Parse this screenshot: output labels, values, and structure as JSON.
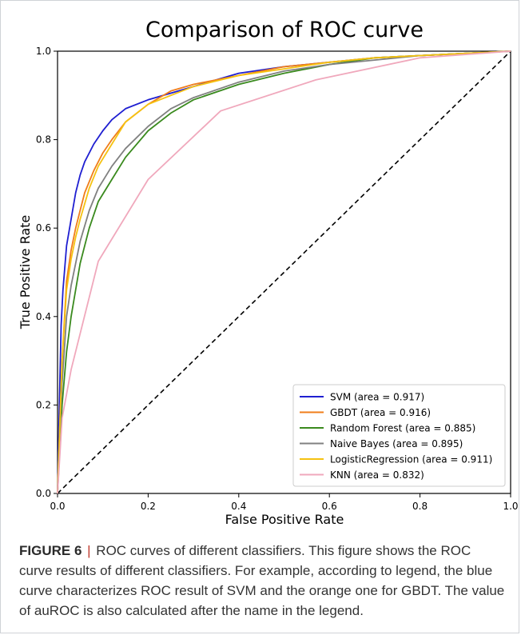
{
  "chart_data": {
    "type": "line",
    "title": "Comparison of ROC curve",
    "xlabel": "False Positive Rate",
    "ylabel": "True Positive Rate",
    "xlim": [
      0.0,
      1.0
    ],
    "ylim": [
      0.0,
      1.0
    ],
    "xticks": [
      "0.0",
      "0.2",
      "0.4",
      "0.6",
      "0.8",
      "1.0"
    ],
    "yticks": [
      "0.0",
      "0.2",
      "0.4",
      "0.6",
      "0.8",
      "1.0"
    ],
    "grid": false,
    "legend_position": "lower-right",
    "series": [
      {
        "name": "SVM (area = 0.917)",
        "color": "#1f1fd1",
        "x": [
          0,
          0.004,
          0.008,
          0.012,
          0.02,
          0.03,
          0.04,
          0.05,
          0.06,
          0.08,
          0.1,
          0.12,
          0.15,
          0.2,
          0.3,
          0.4,
          0.5,
          0.6,
          0.7,
          0.8,
          0.9,
          1.0
        ],
        "y": [
          0,
          0.2,
          0.38,
          0.46,
          0.56,
          0.62,
          0.68,
          0.72,
          0.75,
          0.79,
          0.82,
          0.845,
          0.87,
          0.89,
          0.92,
          0.95,
          0.965,
          0.975,
          0.985,
          0.99,
          0.995,
          1.0
        ]
      },
      {
        "name": "GBDT (area = 0.916)",
        "color": "#f07d1a",
        "x": [
          0,
          0.005,
          0.01,
          0.02,
          0.03,
          0.04,
          0.05,
          0.06,
          0.08,
          0.1,
          0.12,
          0.15,
          0.2,
          0.25,
          0.3,
          0.4,
          0.5,
          0.6,
          0.7,
          0.8,
          0.9,
          1.0
        ],
        "y": [
          0,
          0.15,
          0.3,
          0.48,
          0.55,
          0.6,
          0.64,
          0.68,
          0.73,
          0.77,
          0.8,
          0.84,
          0.88,
          0.91,
          0.925,
          0.945,
          0.965,
          0.975,
          0.985,
          0.99,
          0.995,
          1.0
        ]
      },
      {
        "name": "Random Forest (area = 0.885)",
        "color": "#3a8a1e",
        "x": [
          0,
          0.005,
          0.01,
          0.02,
          0.03,
          0.05,
          0.07,
          0.09,
          0.12,
          0.15,
          0.2,
          0.25,
          0.3,
          0.4,
          0.5,
          0.6,
          0.7,
          0.8,
          0.9,
          1.0
        ],
        "y": [
          0,
          0.1,
          0.2,
          0.32,
          0.4,
          0.52,
          0.6,
          0.66,
          0.71,
          0.76,
          0.82,
          0.86,
          0.89,
          0.925,
          0.95,
          0.97,
          0.985,
          0.99,
          0.995,
          1.0
        ]
      },
      {
        "name": "Naive Bayes (area = 0.895)",
        "color": "#808080",
        "x": [
          0,
          0.005,
          0.01,
          0.02,
          0.03,
          0.05,
          0.07,
          0.09,
          0.12,
          0.15,
          0.2,
          0.25,
          0.3,
          0.4,
          0.5,
          0.6,
          0.7,
          0.8,
          0.9,
          1.0
        ],
        "y": [
          0,
          0.15,
          0.25,
          0.4,
          0.47,
          0.57,
          0.64,
          0.69,
          0.74,
          0.78,
          0.83,
          0.87,
          0.895,
          0.93,
          0.955,
          0.97,
          0.98,
          0.99,
          0.995,
          1.0
        ]
      },
      {
        "name": "LogisticRegression (area = 0.911)",
        "color": "#f5c211",
        "x": [
          0,
          0.005,
          0.01,
          0.02,
          0.03,
          0.04,
          0.05,
          0.07,
          0.09,
          0.12,
          0.15,
          0.2,
          0.25,
          0.3,
          0.4,
          0.5,
          0.6,
          0.7,
          0.8,
          0.9,
          1.0
        ],
        "y": [
          0,
          0.15,
          0.3,
          0.46,
          0.53,
          0.58,
          0.62,
          0.69,
          0.74,
          0.79,
          0.84,
          0.88,
          0.9,
          0.92,
          0.945,
          0.96,
          0.975,
          0.985,
          0.99,
          0.995,
          1.0
        ]
      },
      {
        "name": "KNN (area = 0.832)",
        "color": "#f0a8bc",
        "x": [
          0,
          0.01,
          0.03,
          0.09,
          0.2,
          0.36,
          0.57,
          0.8,
          1.0
        ],
        "y": [
          0,
          0.17,
          0.28,
          0.525,
          0.71,
          0.865,
          0.935,
          0.985,
          1.0
        ]
      }
    ],
    "reference_line": {
      "x": [
        0,
        1
      ],
      "y": [
        0,
        1
      ],
      "style": "dashed",
      "color": "#000000"
    }
  },
  "caption": {
    "label": "FIGURE 6",
    "separator": "|",
    "text": "ROC curves of different classifiers. This figure shows the ROC curve results of different classifiers. For example, according to legend, the blue curve characterizes ROC result of SVM and the orange one for GBDT. The value of auROC is also calculated after the name in the legend."
  }
}
